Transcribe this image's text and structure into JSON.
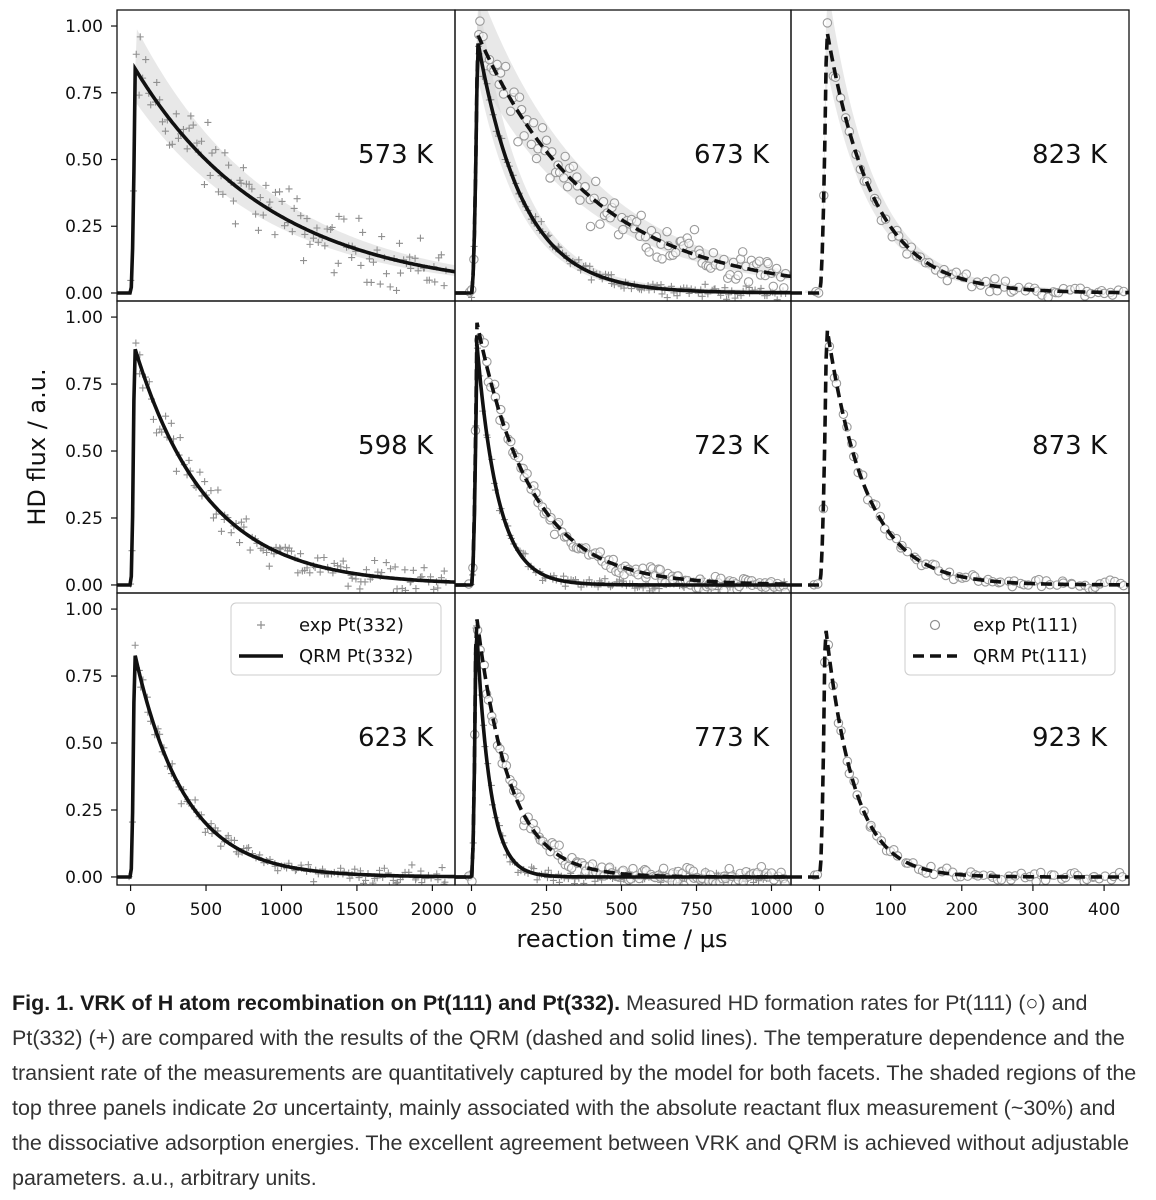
{
  "figure": {
    "ylabel": "HD flux / a.u.",
    "xlabel": "reaction time / μs",
    "columns": [
      {
        "xlim": [
          -90,
          2150
        ],
        "xticks": [
          0,
          500,
          1000,
          1500,
          2000
        ],
        "xtick_labels": [
          "0",
          "500",
          "1000",
          "1500",
          "2000"
        ]
      },
      {
        "xlim": [
          -55,
          1065
        ],
        "xticks": [
          0,
          250,
          500,
          750,
          1000
        ],
        "xtick_labels": [
          "0",
          "250",
          "500",
          "750",
          "1000"
        ]
      },
      {
        "xlim": [
          -40,
          435
        ],
        "xticks": [
          0,
          100,
          200,
          300,
          400
        ],
        "xtick_labels": [
          "0",
          "100",
          "200",
          "300",
          "400"
        ]
      }
    ],
    "ylim": [
      -0.03,
      1.06
    ],
    "yticks": [
      0,
      0.25,
      0.5,
      0.75,
      1.0
    ],
    "ytick_labels": [
      "0.00",
      "0.25",
      "0.50",
      "0.75",
      "1.00"
    ]
  },
  "chart_data": [
    {
      "type": "scatter",
      "col": 0,
      "row": 0,
      "temperature": "573 K",
      "series": [
        {
          "name": "exp Pt(332)",
          "marker": "+",
          "rise": 30,
          "peak": 0.84,
          "tau": 900,
          "noise": 0.09,
          "xmax": 2100
        },
        {
          "name": "QRM Pt(332)",
          "style": "solid",
          "rise": 30,
          "peak": 0.84,
          "tau": 900,
          "xmax": 2150
        }
      ],
      "band": true
    },
    {
      "type": "scatter",
      "col": 1,
      "row": 0,
      "temperature": "673 K",
      "series": [
        {
          "name": "exp Pt(332)",
          "marker": "+",
          "rise": 20,
          "peak": 0.95,
          "tau": 150,
          "noise": 0.02,
          "xmax": 1050
        },
        {
          "name": "QRM Pt(332)",
          "style": "solid",
          "rise": 20,
          "peak": 0.95,
          "tau": 150,
          "xmax": 1065
        },
        {
          "name": "exp Pt(111)",
          "marker": "o",
          "rise": 20,
          "peak": 0.97,
          "tau": 380,
          "noise": 0.06,
          "xmax": 1050
        },
        {
          "name": "QRM Pt(111)",
          "style": "dashed",
          "rise": 20,
          "peak": 0.97,
          "tau": 380,
          "xmax": 1065
        }
      ],
      "band": true
    },
    {
      "type": "scatter",
      "col": 2,
      "row": 0,
      "temperature": "823 K",
      "series": [
        {
          "name": "exp Pt(111)",
          "marker": "o",
          "rise": 10,
          "peak": 0.99,
          "tau": 65,
          "noise": 0.02,
          "xmax": 430
        },
        {
          "name": "QRM Pt(111)",
          "style": "dashed",
          "rise": 10,
          "peak": 0.99,
          "tau": 65,
          "xmax": 435
        }
      ],
      "band": true
    },
    {
      "type": "scatter",
      "col": 0,
      "row": 1,
      "temperature": "598 K",
      "series": [
        {
          "name": "exp Pt(332)",
          "marker": "+",
          "rise": 25,
          "peak": 0.89,
          "tau": 480,
          "noise": 0.05,
          "xmax": 2100
        },
        {
          "name": "QRM Pt(332)",
          "style": "solid",
          "rise": 25,
          "peak": 0.89,
          "tau": 480,
          "xmax": 2150
        }
      ],
      "band": false
    },
    {
      "type": "scatter",
      "col": 1,
      "row": 1,
      "temperature": "723 K",
      "series": [
        {
          "name": "exp Pt(332)",
          "marker": "+",
          "rise": 18,
          "peak": 0.9,
          "tau": 70,
          "noise": 0.02,
          "xmax": 1050
        },
        {
          "name": "QRM Pt(332)",
          "style": "solid",
          "rise": 18,
          "peak": 0.9,
          "tau": 70,
          "xmax": 1065
        },
        {
          "name": "exp Pt(111)",
          "marker": "o",
          "rise": 18,
          "peak": 0.98,
          "tau": 180,
          "noise": 0.03,
          "xmax": 1050
        },
        {
          "name": "QRM Pt(111)",
          "style": "dashed",
          "rise": 18,
          "peak": 0.98,
          "tau": 180,
          "xmax": 1065
        }
      ],
      "band": false
    },
    {
      "type": "scatter",
      "col": 2,
      "row": 1,
      "temperature": "873 K",
      "series": [
        {
          "name": "exp Pt(111)",
          "marker": "o",
          "rise": 10,
          "peak": 0.97,
          "tau": 55,
          "noise": 0.015,
          "xmax": 430
        },
        {
          "name": "QRM Pt(111)",
          "style": "dashed",
          "rise": 10,
          "peak": 0.97,
          "tau": 55,
          "xmax": 435
        }
      ],
      "band": false
    },
    {
      "type": "scatter",
      "col": 0,
      "row": 2,
      "temperature": "623 K",
      "series": [
        {
          "name": "exp Pt(332)",
          "marker": "+",
          "rise": 25,
          "peak": 0.84,
          "tau": 330,
          "noise": 0.03,
          "xmax": 2100
        },
        {
          "name": "QRM Pt(332)",
          "style": "solid",
          "rise": 25,
          "peak": 0.84,
          "tau": 330,
          "xmax": 2150
        }
      ],
      "band": false,
      "legend": {
        "position": "top-right",
        "entries": [
          {
            "label": "exp Pt(332)",
            "style": "plus"
          },
          {
            "label": "QRM Pt(332)",
            "style": "solid"
          }
        ]
      }
    },
    {
      "type": "scatter",
      "col": 1,
      "row": 2,
      "temperature": "773 K",
      "series": [
        {
          "name": "exp Pt(332)",
          "marker": "+",
          "rise": 15,
          "peak": 0.97,
          "tau": 45,
          "noise": 0.02,
          "xmax": 1050
        },
        {
          "name": "QRM Pt(332)",
          "style": "solid",
          "rise": 15,
          "peak": 0.97,
          "tau": 45,
          "xmax": 1065
        },
        {
          "name": "exp Pt(111)",
          "marker": "o",
          "rise": 15,
          "peak": 0.99,
          "tau": 110,
          "noise": 0.03,
          "xmax": 1050
        },
        {
          "name": "QRM Pt(111)",
          "style": "dashed",
          "rise": 15,
          "peak": 0.99,
          "tau": 110,
          "xmax": 1065
        }
      ],
      "band": false
    },
    {
      "type": "scatter",
      "col": 2,
      "row": 2,
      "temperature": "923 K",
      "series": [
        {
          "name": "exp Pt(111)",
          "marker": "o",
          "rise": 8,
          "peak": 0.95,
          "tau": 40,
          "noise": 0.015,
          "xmax": 430
        },
        {
          "name": "QRM Pt(111)",
          "style": "dashed",
          "rise": 8,
          "peak": 0.95,
          "tau": 40,
          "xmax": 435
        }
      ],
      "band": false,
      "legend": {
        "position": "top-right",
        "entries": [
          {
            "label": "exp Pt(111)",
            "style": "circle"
          },
          {
            "label": "QRM Pt(111)",
            "style": "dashed"
          }
        ]
      }
    }
  ],
  "caption": {
    "title": "Fig. 1. VRK of H atom recombination on Pt(111) and Pt(332).",
    "body": " Measured HD formation rates for Pt(111) (○) and Pt(332) (+) are compared with the results of the QRM (dashed and solid lines). The temperature dependence and the transient rate of the measurements are quantitatively captured by the model for both facets. The shaded regions of the top three panels indicate 2σ uncertainty, mainly associated with the absolute reactant flux measurement (~30%) and the dissociative adsorption energies. The excellent agreement between VRK and QRM is achieved without adjustable parameters. a.u., arbitrary units."
  }
}
